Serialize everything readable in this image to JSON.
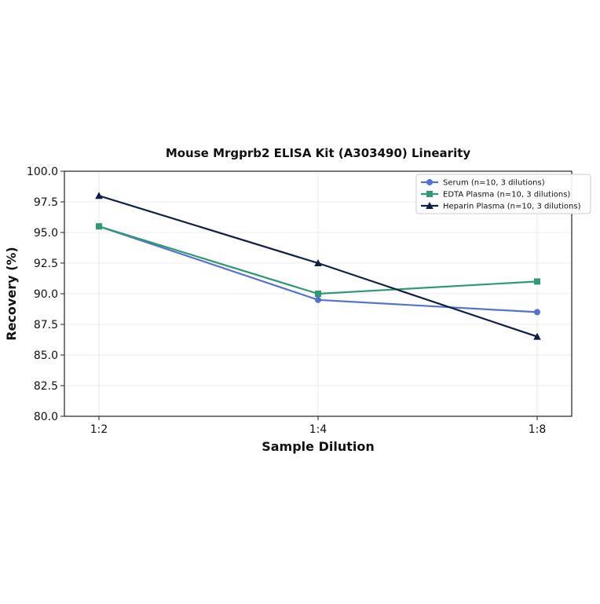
{
  "chart_data": {
    "type": "line",
    "title": "Mouse Mrgprb2 ELISA Kit (A303490) Linearity",
    "xlabel": "Sample Dilution",
    "ylabel": "Recovery (%)",
    "categories": [
      "1:2",
      "1:4",
      "1:8"
    ],
    "ylim": [
      80.0,
      100.0
    ],
    "yticks": [
      "80.0",
      "82.5",
      "85.0",
      "87.5",
      "90.0",
      "92.5",
      "95.0",
      "97.5",
      "100.0"
    ],
    "grid": true,
    "legend_position": "top-right",
    "series": [
      {
        "name": "Serum (n=10, 3 dilutions)",
        "values": [
          95.5,
          89.5,
          88.5
        ],
        "color": "#5572d2",
        "marker": "circle"
      },
      {
        "name": "EDTA Plasma (n=10, 3 dilutions)",
        "values": [
          95.5,
          90.0,
          91.0
        ],
        "color": "#2e9a74",
        "marker": "square"
      },
      {
        "name": "Heparin Plasma (n=10, 3 dilutions)",
        "values": [
          98.0,
          92.5,
          86.5
        ],
        "color": "#0f1f45",
        "marker": "triangle"
      }
    ]
  }
}
